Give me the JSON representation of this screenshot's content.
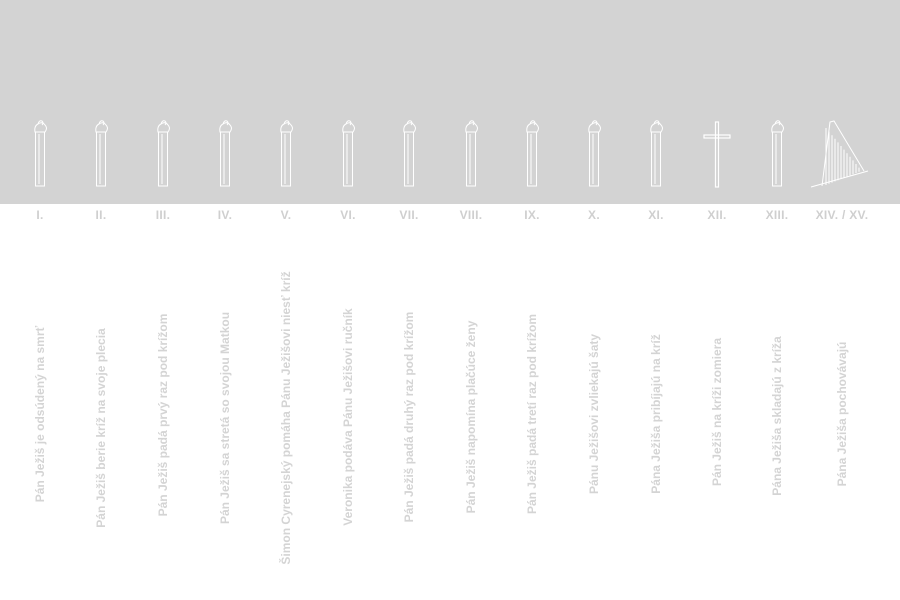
{
  "stations": [
    {
      "numeral": "I.",
      "title": "Pán Ježiš je odsúdený na smrť",
      "icon": "pillar-icon"
    },
    {
      "numeral": "II.",
      "title": "Pán Ježiš berie kríž na svoje plecia",
      "icon": "pillar-icon"
    },
    {
      "numeral": "III.",
      "title": "Pán Ježiš padá prvý raz pod krížom",
      "icon": "pillar-icon"
    },
    {
      "numeral": "IV.",
      "title": "Pán Ježiš sa stretá so svojou Matkou",
      "icon": "pillar-icon"
    },
    {
      "numeral": "V.",
      "title": "Šimon Cyrenejský pomáha Pánu Ježišovi niesť kríž",
      "icon": "pillar-icon"
    },
    {
      "numeral": "VI.",
      "title": "Veronika podáva Pánu Ježišovi ručník",
      "icon": "pillar-icon"
    },
    {
      "numeral": "VII.",
      "title": "Pán Ježiš padá druhý raz pod krížom",
      "icon": "pillar-icon"
    },
    {
      "numeral": "VIII.",
      "title": "Pán Ježiš napomína plačúce ženy",
      "icon": "pillar-icon"
    },
    {
      "numeral": "IX.",
      "title": "Pán Ježiš padá tretí raz pod krížom",
      "icon": "pillar-icon"
    },
    {
      "numeral": "X.",
      "title": "Pánu Ježišovi zvliekajú šaty",
      "icon": "pillar-icon"
    },
    {
      "numeral": "XI.",
      "title": "Pána Ježiša pribíjajú na kríž",
      "icon": "pillar-icon"
    },
    {
      "numeral": "XII.",
      "title": "Pán Ježiš na kríži zomiera",
      "icon": "cross-icon"
    },
    {
      "numeral": "XIII.",
      "title": "Pána Ježiša skladajú z kríža",
      "icon": "pillar-icon"
    },
    {
      "numeral": "XIV. / XV.",
      "title": "Pána Ježiša pochovávajú",
      "icon": "chapel-icon"
    }
  ],
  "colors": {
    "band": "#d3d3d3",
    "line": "#ffffff",
    "text": "#d4d4d4"
  }
}
